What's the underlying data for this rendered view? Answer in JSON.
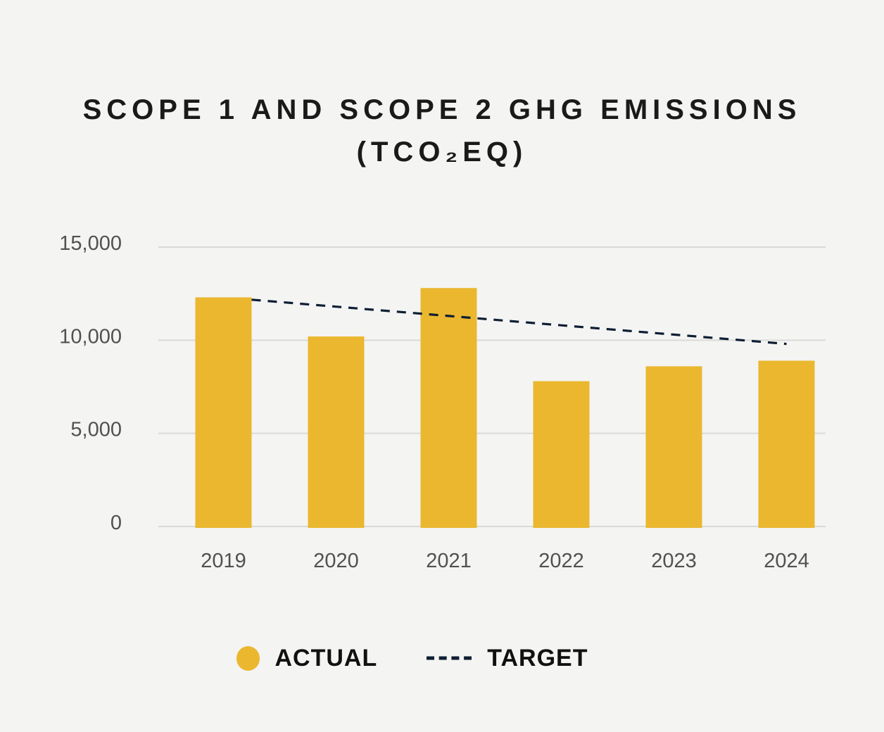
{
  "page": {
    "background": "#F4F4F3"
  },
  "title": {
    "line1": "SCOPE 1 AND SCOPE 2 GHG EMISSIONS",
    "line2": "(TCO₂EQ)"
  },
  "colors": {
    "bar_yellow": "#EAB72F",
    "target_navy": "#0E1E33",
    "background": "#F4F4F3",
    "gridline": "#D9D9D9",
    "axis_label": "#515151",
    "title_text": "#1A1A1A",
    "legend_text": "#111111"
  },
  "legend": {
    "actual_label": "ACTUAL",
    "target_label": "TARGET"
  },
  "chart_data": {
    "type": "bar",
    "title": "SCOPE 1 AND SCOPE 2 GHG EMISSIONS (TCO2EQ)",
    "categories": [
      "2019",
      "2020",
      "2021",
      "2022",
      "2023",
      "2024"
    ],
    "series": [
      {
        "name": "ACTUAL",
        "type": "bar",
        "color": "#EAB72F",
        "values": [
          12300,
          10200,
          12800,
          7800,
          8600,
          8900
        ]
      },
      {
        "name": "TARGET",
        "type": "line",
        "line_style": "dashed",
        "color": "#0E1E33",
        "values": [
          12300,
          11800,
          11300,
          10800,
          10300,
          9800
        ]
      }
    ],
    "ylim": [
      0,
      15000
    ],
    "yticks": [
      0,
      5000,
      10000,
      15000
    ],
    "ytick_labels": [
      "0",
      "5,000",
      "10,000",
      "15,000"
    ],
    "xlabel": "",
    "ylabel": "",
    "grid": true,
    "legend_position": "bottom",
    "notes": "Target line is linear, starts at the top of the 2019 bar (drawn from the bar's right edge) and declines to 9,800 at 2024."
  }
}
